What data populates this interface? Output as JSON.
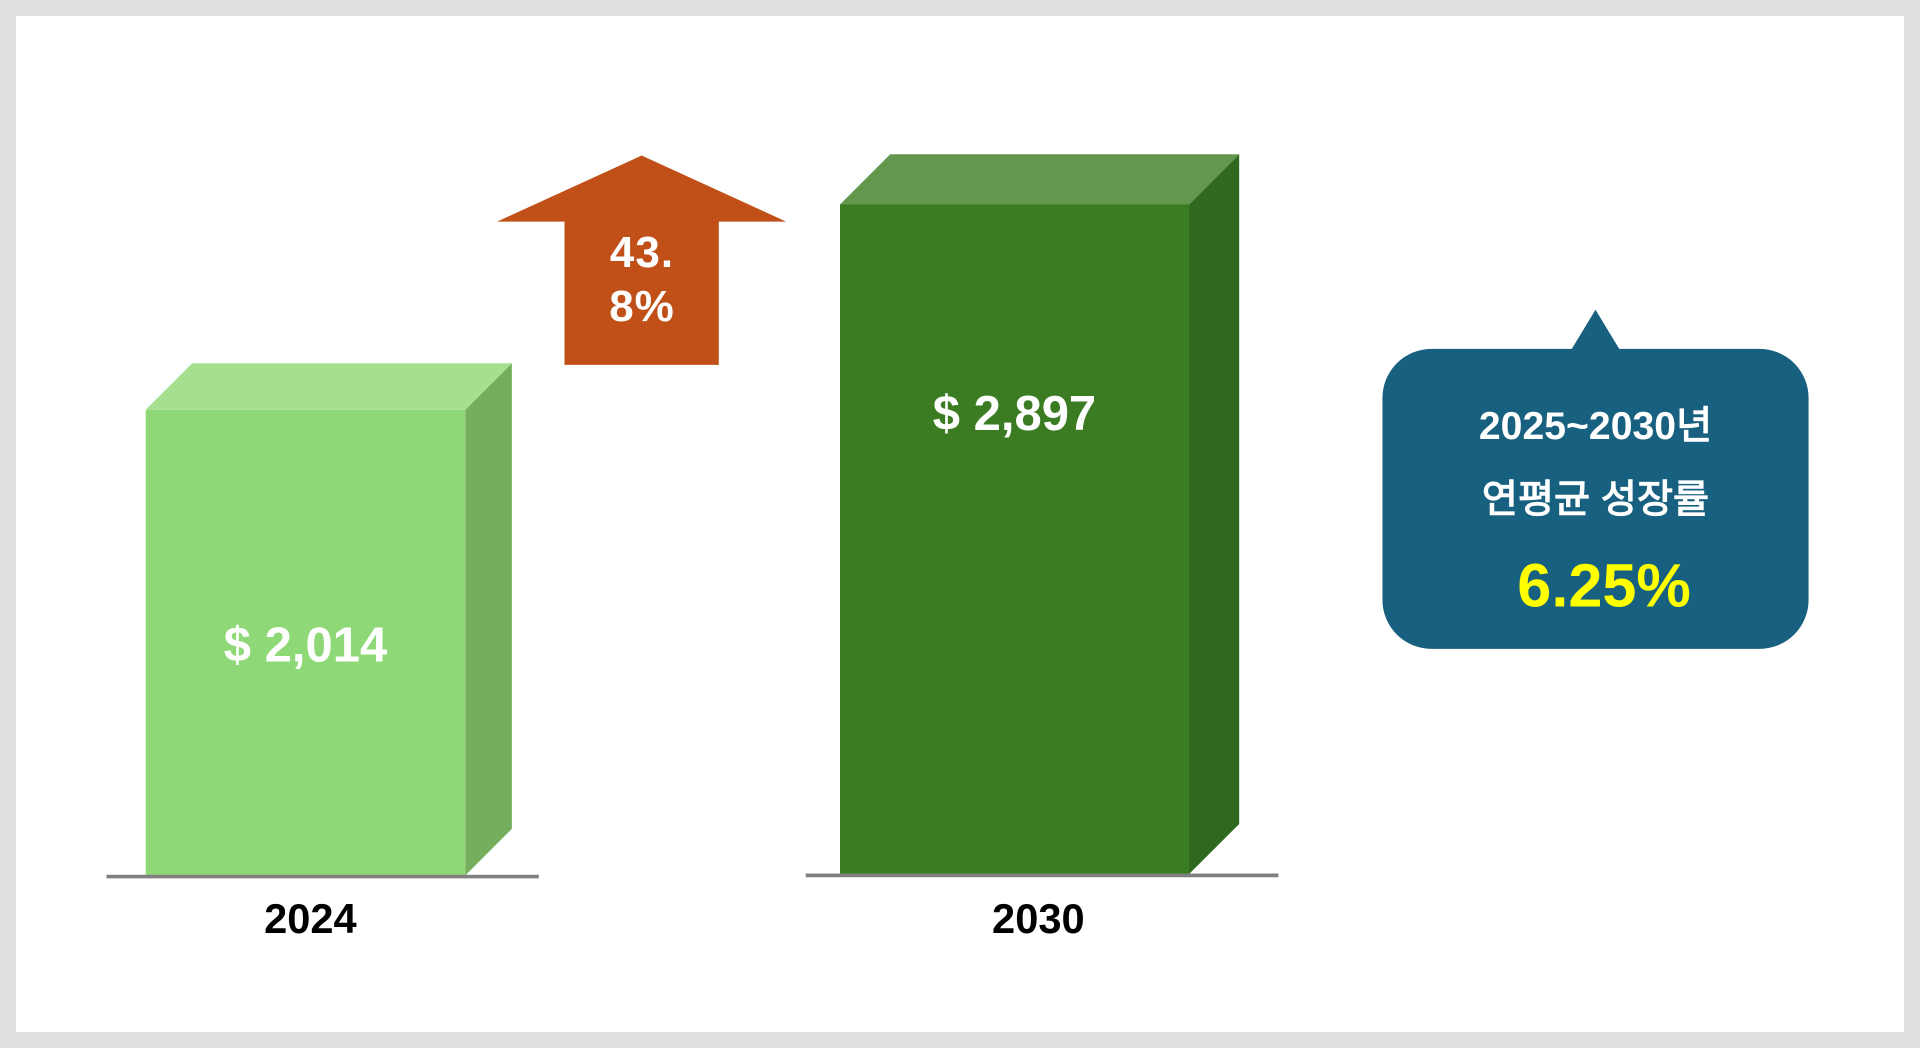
{
  "chart_data": {
    "type": "bar",
    "categories": [
      "2024",
      "2030"
    ],
    "values": [
      2014,
      2897
    ],
    "value_labels": [
      "$ 2,014",
      "$ 2,897"
    ],
    "colors": [
      {
        "front": "#8fd878",
        "top": "#a6e08f",
        "side": "#75ae5c"
      },
      {
        "front": "#3b7c22",
        "top": "#62974d",
        "side": "#306820"
      }
    ],
    "growth_label": "43.8%",
    "callout": {
      "lines": [
        "2025~2030년",
        "연평균 성장률"
      ],
      "highlight": "6.25%"
    }
  }
}
